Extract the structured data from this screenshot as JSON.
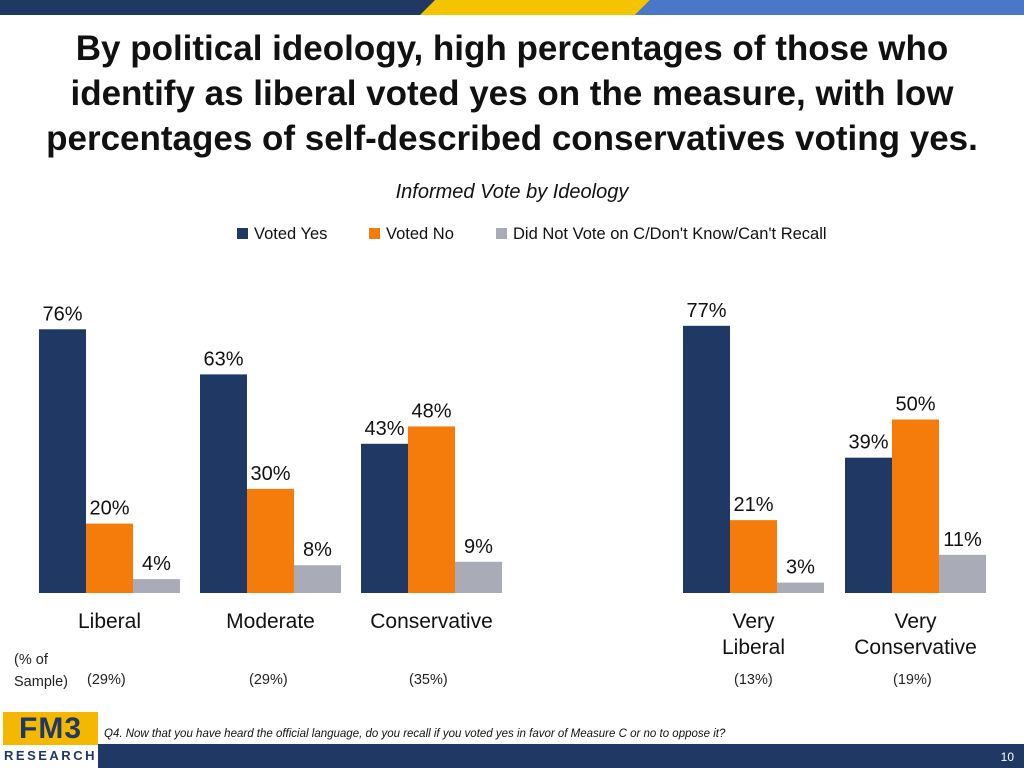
{
  "title_lines": [
    "By political ideology, high percentages of those who",
    "identify as liberal voted yes on the measure, with low",
    "percentages of self-described conservatives voting yes."
  ],
  "subtitle": "Informed Vote by Ideology",
  "colors": {
    "voted_yes": "#1f3864",
    "voted_no": "#f57c0a",
    "other": "#a9acb6",
    "top_dark": "#1f3864",
    "top_gold": "#f5c400",
    "top_blue": "#4a78c8"
  },
  "legend": [
    "Voted Yes",
    "Voted No",
    "Did Not Vote on C/Don't Know/Can't Recall"
  ],
  "chart_data": {
    "type": "bar",
    "title": "Informed Vote by Ideology",
    "ylim": [
      0,
      100
    ],
    "categories": [
      "Liberal",
      "Moderate",
      "Conservative",
      "Very Liberal",
      "Very Conservative"
    ],
    "series": [
      {
        "name": "Voted Yes",
        "values": [
          76,
          63,
          43,
          77,
          39
        ]
      },
      {
        "name": "Voted No",
        "values": [
          20,
          30,
          48,
          21,
          50
        ]
      },
      {
        "name": "Did Not Vote on C/Don't Know/Can't Recall",
        "values": [
          4,
          8,
          9,
          3,
          11
        ]
      }
    ],
    "value_labels": [
      [
        "76%",
        "20%",
        "4%"
      ],
      [
        "63%",
        "30%",
        "8%"
      ],
      [
        "43%",
        "48%",
        "9%"
      ],
      [
        "77%",
        "21%",
        "3%"
      ],
      [
        "39%",
        "50%",
        "11%"
      ]
    ],
    "category_label_lines": [
      [
        "Liberal"
      ],
      [
        "Moderate"
      ],
      [
        "Conservative"
      ],
      [
        "Very",
        "Liberal"
      ],
      [
        "Very",
        "Conservative"
      ]
    ]
  },
  "sample": {
    "label_lines": [
      "(% of",
      "Sample)"
    ],
    "values": [
      "(29%)",
      "(29%)",
      "(35%)",
      "(13%)",
      "(19%)"
    ]
  },
  "logo": {
    "top": "FM3",
    "bottom": "RESEARCH"
  },
  "footnote": "Q4. Now that you have heard the official language, do you recall if you voted yes in favor of Measure C or no to oppose it?",
  "page_number": "10"
}
